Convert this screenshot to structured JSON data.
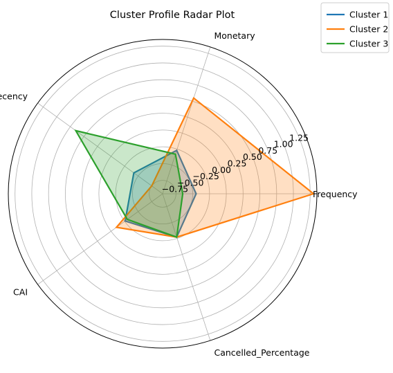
{
  "chart_data": {
    "type": "radar",
    "title": "Cluster Profile Radar Plot",
    "axes": [
      "Frequency",
      "Monetary",
      "Recency",
      "CAI",
      "Cancelled_Percentage"
    ],
    "radial_ticks": [
      "−0.75",
      "−0.50",
      "−0.25",
      "0.00",
      "0.25",
      "0.50",
      "0.75",
      "1.00",
      "1.25"
    ],
    "radial_tick_values": [
      -0.75,
      -0.5,
      -0.25,
      0.0,
      0.25,
      0.5,
      0.75,
      1.0,
      1.25
    ],
    "rlim": [
      -0.95,
      1.35
    ],
    "grid": true,
    "legend_position": "top-right",
    "series": [
      {
        "name": "Cluster 1",
        "color": "#1f77b4",
        "values": [
          -0.45,
          -0.27,
          -0.42,
          -0.26,
          -0.27
        ]
      },
      {
        "name": "Cluster 2",
        "color": "#ff7f0e",
        "values": [
          1.3,
          0.55,
          -0.75,
          -0.1,
          -0.27
        ]
      },
      {
        "name": "Cluster 3",
        "color": "#2ca02c",
        "values": [
          -0.65,
          -0.33,
          0.65,
          -0.3,
          -0.27
        ]
      }
    ]
  }
}
